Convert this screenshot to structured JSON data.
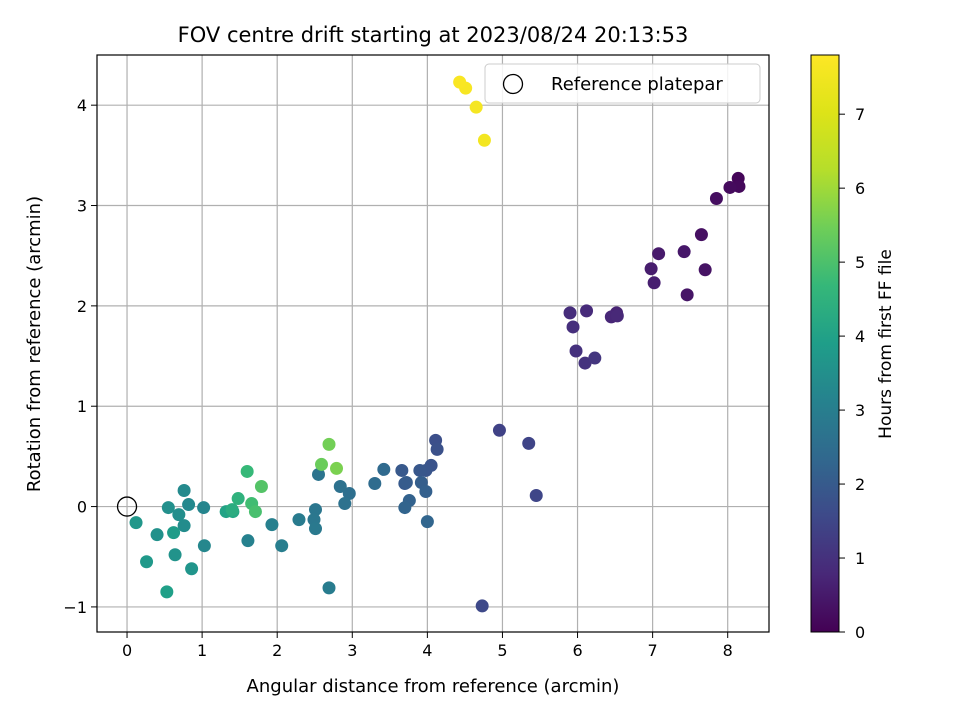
{
  "chart_data": {
    "type": "scatter",
    "title": "FOV centre drift starting at 2023/08/24 20:13:53",
    "xlabel": "Angular distance from reference (arcmin)",
    "ylabel": "Rotation from reference (arcmin)",
    "xlim": [
      -0.4,
      8.55
    ],
    "ylim": [
      -1.25,
      4.5
    ],
    "xticks": [
      0,
      1,
      2,
      3,
      4,
      5,
      6,
      7,
      8
    ],
    "yticks": [
      -1,
      0,
      1,
      2,
      3,
      4
    ],
    "ytick_labels": [
      "−1",
      "0",
      "1",
      "2",
      "3",
      "4"
    ],
    "grid": true,
    "legend": {
      "position": "top-right",
      "entries": [
        {
          "label": "Reference platepar",
          "marker": "open-circle"
        }
      ]
    },
    "reference_point": {
      "x": 0,
      "y": 0,
      "label": "Reference platepar"
    },
    "colorbar": {
      "label": "Hours from first FF file",
      "colormap": "viridis",
      "range": [
        0,
        7.8
      ],
      "ticks": [
        0,
        1,
        2,
        3,
        4,
        5,
        6,
        7
      ]
    },
    "series": [
      {
        "name": "FOV centre drift",
        "points": [
          {
            "x": 8.14,
            "y": 3.27,
            "c": 0.1
          },
          {
            "x": 8.15,
            "y": 3.19,
            "c": 0.15
          },
          {
            "x": 8.03,
            "y": 3.18,
            "c": 0.2
          },
          {
            "x": 7.85,
            "y": 3.07,
            "c": 0.25
          },
          {
            "x": 7.65,
            "y": 2.71,
            "c": 0.3
          },
          {
            "x": 7.7,
            "y": 2.36,
            "c": 0.35
          },
          {
            "x": 7.46,
            "y": 2.11,
            "c": 0.4
          },
          {
            "x": 7.42,
            "y": 2.54,
            "c": 0.45
          },
          {
            "x": 7.08,
            "y": 2.52,
            "c": 0.5
          },
          {
            "x": 6.98,
            "y": 2.37,
            "c": 0.55
          },
          {
            "x": 7.02,
            "y": 2.23,
            "c": 0.6
          },
          {
            "x": 6.52,
            "y": 1.93,
            "c": 0.7
          },
          {
            "x": 6.45,
            "y": 1.89,
            "c": 0.75
          },
          {
            "x": 6.53,
            "y": 1.9,
            "c": 0.8
          },
          {
            "x": 6.12,
            "y": 1.95,
            "c": 0.85
          },
          {
            "x": 5.9,
            "y": 1.93,
            "c": 0.9
          },
          {
            "x": 5.94,
            "y": 1.79,
            "c": 0.95
          },
          {
            "x": 5.98,
            "y": 1.55,
            "c": 1.0
          },
          {
            "x": 6.1,
            "y": 1.43,
            "c": 1.05
          },
          {
            "x": 6.23,
            "y": 1.48,
            "c": 1.1
          },
          {
            "x": 4.96,
            "y": 0.76,
            "c": 1.4
          },
          {
            "x": 5.35,
            "y": 0.63,
            "c": 1.45
          },
          {
            "x": 5.45,
            "y": 0.11,
            "c": 1.5
          },
          {
            "x": 4.73,
            "y": -0.99,
            "c": 1.55
          },
          {
            "x": 4.11,
            "y": 0.66,
            "c": 1.7
          },
          {
            "x": 4.13,
            "y": 0.57,
            "c": 1.75
          },
          {
            "x": 4.05,
            "y": 0.41,
            "c": 1.8
          },
          {
            "x": 3.98,
            "y": 0.36,
            "c": 1.85
          },
          {
            "x": 3.9,
            "y": 0.36,
            "c": 1.9
          },
          {
            "x": 3.66,
            "y": 0.36,
            "c": 1.95
          },
          {
            "x": 3.7,
            "y": 0.23,
            "c": 2.0
          },
          {
            "x": 3.72,
            "y": 0.24,
            "c": 2.05
          },
          {
            "x": 3.92,
            "y": 0.24,
            "c": 2.1
          },
          {
            "x": 3.98,
            "y": 0.15,
            "c": 2.15
          },
          {
            "x": 3.76,
            "y": 0.06,
            "c": 2.2
          },
          {
            "x": 3.7,
            "y": -0.01,
            "c": 2.25
          },
          {
            "x": 4.0,
            "y": -0.15,
            "c": 2.3
          },
          {
            "x": 3.42,
            "y": 0.37,
            "c": 2.4
          },
          {
            "x": 3.3,
            "y": 0.23,
            "c": 2.45
          },
          {
            "x": 2.96,
            "y": 0.13,
            "c": 2.55
          },
          {
            "x": 2.84,
            "y": 0.2,
            "c": 2.6
          },
          {
            "x": 2.9,
            "y": 0.03,
            "c": 2.65
          },
          {
            "x": 2.55,
            "y": 0.32,
            "c": 2.7
          },
          {
            "x": 2.51,
            "y": -0.03,
            "c": 2.75
          },
          {
            "x": 2.49,
            "y": -0.13,
            "c": 2.8
          },
          {
            "x": 2.51,
            "y": -0.22,
            "c": 2.85
          },
          {
            "x": 2.29,
            "y": -0.13,
            "c": 2.9
          },
          {
            "x": 2.69,
            "y": -0.81,
            "c": 2.95
          },
          {
            "x": 2.06,
            "y": -0.39,
            "c": 3.0
          },
          {
            "x": 1.93,
            "y": -0.18,
            "c": 3.05
          },
          {
            "x": 1.61,
            "y": -0.34,
            "c": 3.1
          },
          {
            "x": 1.02,
            "y": -0.01,
            "c": 3.2
          },
          {
            "x": 1.03,
            "y": -0.39,
            "c": 3.25
          },
          {
            "x": 0.82,
            "y": 0.02,
            "c": 3.3
          },
          {
            "x": 0.76,
            "y": 0.16,
            "c": 3.35
          },
          {
            "x": 0.76,
            "y": -0.19,
            "c": 3.4
          },
          {
            "x": 0.69,
            "y": -0.08,
            "c": 3.45
          },
          {
            "x": 0.55,
            "y": -0.01,
            "c": 3.5
          },
          {
            "x": 0.4,
            "y": -0.28,
            "c": 3.55
          },
          {
            "x": 0.64,
            "y": -0.48,
            "c": 3.6
          },
          {
            "x": 0.86,
            "y": -0.62,
            "c": 3.65
          },
          {
            "x": 0.12,
            "y": -0.16,
            "c": 3.7
          },
          {
            "x": 0.26,
            "y": -0.55,
            "c": 3.75
          },
          {
            "x": 0.62,
            "y": -0.26,
            "c": 3.85
          },
          {
            "x": 0.53,
            "y": -0.85,
            "c": 3.95
          },
          {
            "x": 1.32,
            "y": -0.05,
            "c": 4.05
          },
          {
            "x": 1.41,
            "y": -0.05,
            "c": 4.2
          },
          {
            "x": 1.4,
            "y": -0.03,
            "c": 4.35
          },
          {
            "x": 1.48,
            "y": 0.08,
            "c": 4.5
          },
          {
            "x": 1.6,
            "y": 0.35,
            "c": 4.7
          },
          {
            "x": 1.66,
            "y": 0.03,
            "c": 4.85
          },
          {
            "x": 1.71,
            "y": -0.05,
            "c": 4.95
          },
          {
            "x": 1.79,
            "y": 0.2,
            "c": 5.1
          },
          {
            "x": 2.59,
            "y": 0.42,
            "c": 5.4
          },
          {
            "x": 2.69,
            "y": 0.62,
            "c": 5.5
          },
          {
            "x": 2.79,
            "y": 0.38,
            "c": 5.6
          },
          {
            "x": 4.76,
            "y": 3.65,
            "c": 7.55
          },
          {
            "x": 4.65,
            "y": 3.98,
            "c": 7.6
          },
          {
            "x": 4.51,
            "y": 4.17,
            "c": 7.65
          },
          {
            "x": 4.43,
            "y": 4.23,
            "c": 7.7
          }
        ]
      }
    ]
  }
}
